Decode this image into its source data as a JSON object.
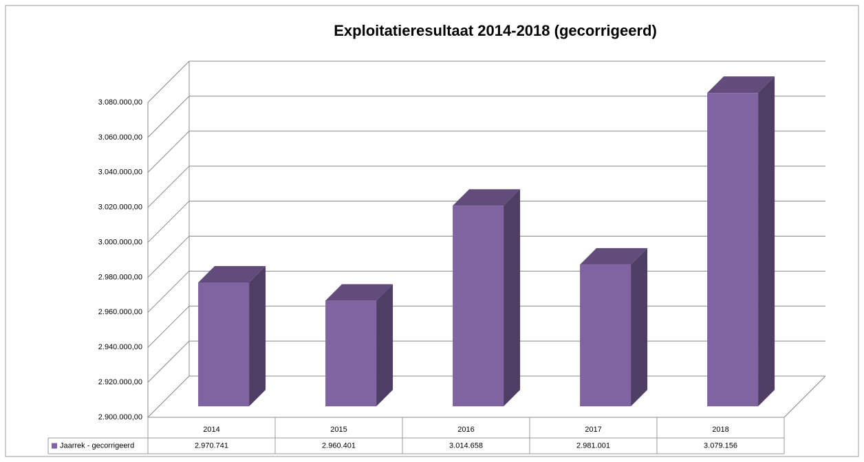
{
  "chart_data": {
    "type": "bar",
    "title": "Exploitatieresultaat 2014-2018 (gecorrigeerd)",
    "categories": [
      "2014",
      "2015",
      "2016",
      "2017",
      "2018"
    ],
    "series": [
      {
        "name": "Jaarrek - gecorrigeerd",
        "color": "#8064a2",
        "values": [
          2970741,
          2960401,
          3014658,
          2981001,
          3079156
        ],
        "value_labels": [
          "2.970.741",
          "2.960.401",
          "3.014.658",
          "2.981.001",
          "3.079.156"
        ]
      }
    ],
    "ylim": [
      2900000,
      3080000
    ],
    "yticks": [
      {
        "value": 2900000,
        "label": "2.900.000,00"
      },
      {
        "value": 2920000,
        "label": "2.920.000,00"
      },
      {
        "value": 2940000,
        "label": "2.940.000,00"
      },
      {
        "value": 2960000,
        "label": "2.960.000,00"
      },
      {
        "value": 2980000,
        "label": "2.980.000,00"
      },
      {
        "value": 3000000,
        "label": "3.000.000,00"
      },
      {
        "value": 3020000,
        "label": "3.020.000,00"
      },
      {
        "value": 3040000,
        "label": "3.040.000,00"
      },
      {
        "value": 3060000,
        "label": "3.060.000,00"
      },
      {
        "value": 3080000,
        "label": "3.080.000,00"
      }
    ],
    "grid": true
  }
}
